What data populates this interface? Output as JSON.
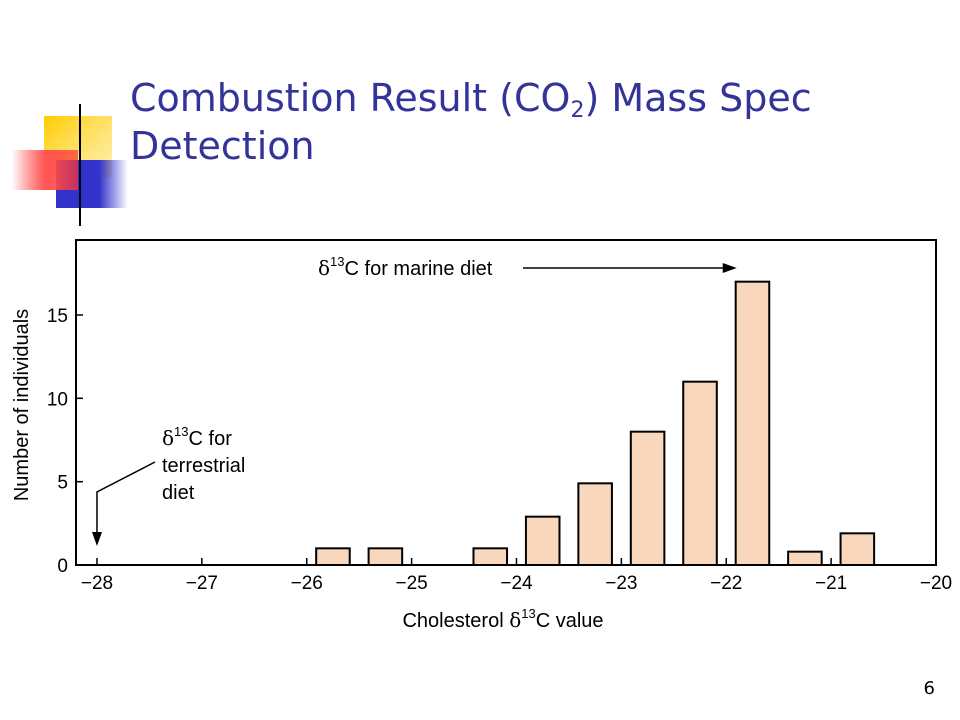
{
  "slide": {
    "title_pre": "Combustion Result (CO",
    "title_sub": "2",
    "title_post": ") Mass Spec",
    "title_line2": "Detection",
    "page_number": "6"
  },
  "colors": {
    "title": "#333399",
    "bar_fill": "#f9d7bd",
    "bar_stroke": "#000000",
    "deco_yellow": "#ffcc00",
    "deco_blue": "#3333cc",
    "deco_red": "#ff3333"
  },
  "chart_data": {
    "type": "bar",
    "xlabel_pre": "Cholesterol ",
    "xlabel_sym": "δ",
    "xlabel_sup": "13",
    "xlabel_post": "C value",
    "ylabel": "Number of individuals",
    "xlim": [
      -28.2,
      -20
    ],
    "ylim": [
      0,
      19.5
    ],
    "xticks": [
      -28,
      -27,
      -26,
      -25,
      -24,
      -23,
      -22,
      -21,
      -20
    ],
    "xtick_labels": [
      "−28",
      "−27",
      "−26",
      "−25",
      "−24",
      "−23",
      "−22",
      "−21",
      "−20"
    ],
    "yticks": [
      0,
      5,
      10,
      15
    ],
    "ytick_labels": [
      "0",
      "5",
      "10",
      "15"
    ],
    "bar_width": 0.32,
    "bars": [
      {
        "x": -25.75,
        "value": 1
      },
      {
        "x": -25.25,
        "value": 1
      },
      {
        "x": -24.25,
        "value": 1
      },
      {
        "x": -23.75,
        "value": 2.9
      },
      {
        "x": -23.25,
        "value": 4.9
      },
      {
        "x": -22.75,
        "value": 8
      },
      {
        "x": -22.25,
        "value": 11
      },
      {
        "x": -21.75,
        "value": 17
      },
      {
        "x": -21.25,
        "value": 0.8
      },
      {
        "x": -20.75,
        "value": 1.9
      }
    ],
    "annotations": {
      "marine": {
        "sym": "δ",
        "sup": "13",
        "text": "C for marine diet",
        "x": -21.9
      },
      "terrestrial": {
        "sym": "δ",
        "sup": "13",
        "line1": "C for",
        "line2": "terrestrial",
        "line3": "diet",
        "x": -28
      }
    }
  }
}
